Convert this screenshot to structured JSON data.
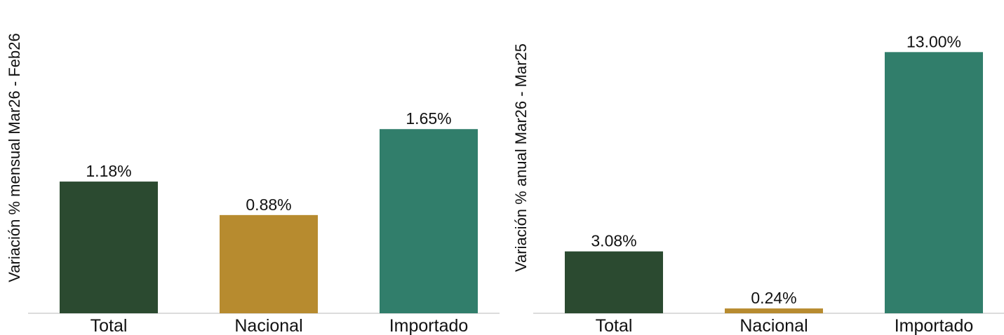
{
  "chart_data": [
    {
      "type": "bar",
      "categories": [
        "Total",
        "Nacional",
        "Importado"
      ],
      "values": [
        1.18,
        0.88,
        1.65
      ],
      "data_labels": [
        "1.18%",
        "0.88%",
        "1.65%"
      ],
      "title": "",
      "xlabel": "",
      "ylabel": "Variación % mensual Mar26 - Feb26",
      "ylim": [
        0,
        2.7
      ],
      "grid": false,
      "colors": [
        "#2b4a30",
        "#b78b2f",
        "#317e6b"
      ]
    },
    {
      "type": "bar",
      "categories": [
        "Total",
        "Nacional",
        "Importado"
      ],
      "values": [
        3.08,
        0.24,
        13.0
      ],
      "data_labels": [
        "3.08%",
        "0.24%",
        "13.00%"
      ],
      "title": "",
      "xlabel": "",
      "ylabel": "Variación % anual Mar26 - Mar25",
      "ylim": [
        0,
        15.0
      ],
      "grid": false,
      "colors": [
        "#2b4a30",
        "#b78b2f",
        "#317e6b"
      ]
    }
  ]
}
